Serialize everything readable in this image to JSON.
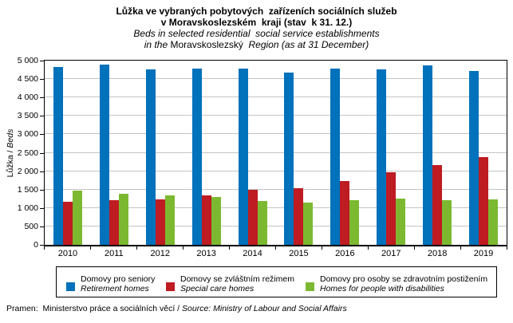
{
  "title": {
    "line1": "Lůžka ve vybraných pobytových  zařízeních sociálních služeb",
    "line2": "v Moravskoslezském  kraji (stav  k 31. 12.)",
    "line3": "Beds in selected residential  social service establishments",
    "line4_italic_prefix": "in the ",
    "line4_upright": "Moravskoslezský",
    "line4_italic_suffix": "  Region (as at 31 December)"
  },
  "axes": {
    "y_title_normal": "Lůžka / ",
    "y_title_italic": "Beds"
  },
  "source": {
    "normal": "Pramen:  Ministerstvo práce a sociálních věcí / ",
    "italic": "Source: Ministry of Labour and Social Affairs"
  },
  "chart_data": {
    "type": "bar",
    "title": "Lůžka ve vybraných pobytových zařízeních sociálních služeb v Moravskoslezském kraji (stav k 31. 12.) / Beds in selected residential social service establishments in the Moravskoslezský Region (as at 31 December)",
    "categories": [
      "2010",
      "2011",
      "2012",
      "2013",
      "2014",
      "2015",
      "2016",
      "2017",
      "2018",
      "2019"
    ],
    "series": [
      {
        "name_cz": "Domovy pro seniory",
        "name_en": "Retirement homes",
        "color": "#0071BB",
        "values": [
          4820,
          4890,
          4755,
          4785,
          4785,
          4685,
          4790,
          4765,
          4870,
          4715
        ]
      },
      {
        "name_cz": "Domovy se zvláštním režimem",
        "name_en": "Special care homes",
        "color": "#BE1B22",
        "values": [
          1170,
          1215,
          1235,
          1340,
          1500,
          1545,
          1735,
          1970,
          2170,
          2380
        ]
      },
      {
        "name_cz": "Domovy pro osoby se zdravotním postižením",
        "name_en": "Homes for people with disabilities",
        "color": "#7CB931",
        "values": [
          1480,
          1380,
          1350,
          1290,
          1200,
          1150,
          1220,
          1265,
          1220,
          1225
        ]
      }
    ],
    "xlabel": "",
    "ylabel": "Lůžka / Beds",
    "ylim": [
      0,
      5000
    ],
    "ytick_step": 500,
    "ytick_labels": [
      "0",
      "500",
      "1 000",
      "1 500",
      "2 000",
      "2 500",
      "3 000",
      "3 500",
      "4 000",
      "4 500",
      "5 000"
    ],
    "grid": true,
    "gridline_color": "#C4C4C4",
    "legend_position": "bottom"
  }
}
